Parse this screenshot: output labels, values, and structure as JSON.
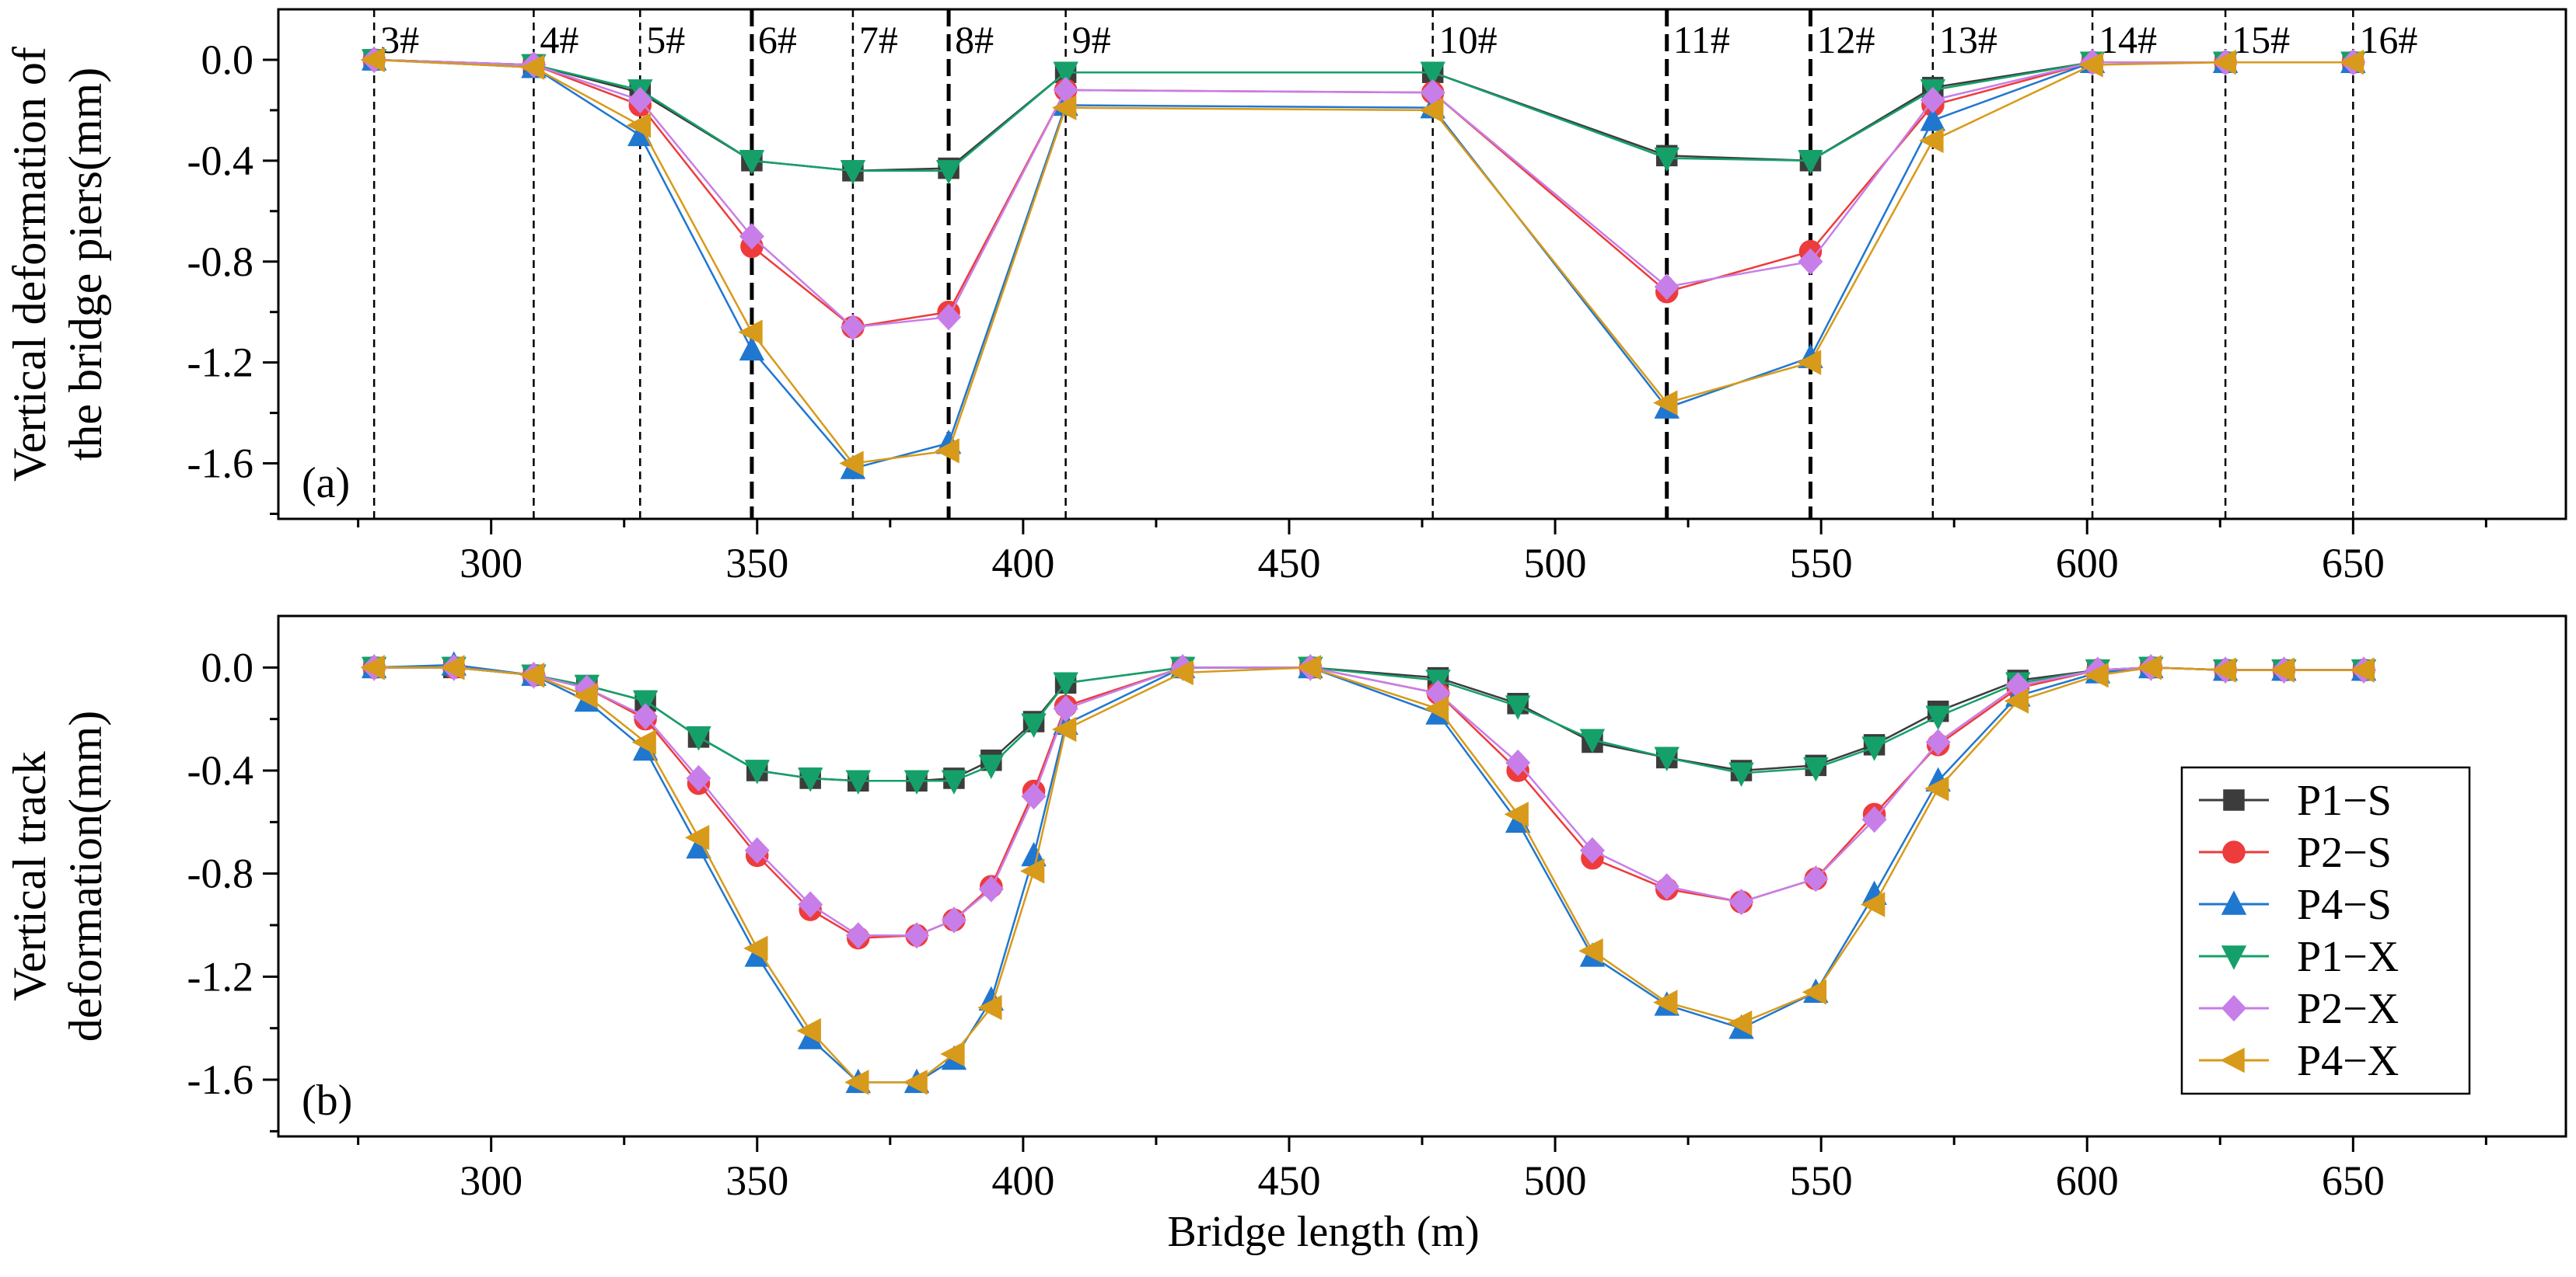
{
  "colors": {
    "P1-S": "#3c3c3c",
    "P2-S": "#ee3b3b",
    "P4-S": "#1f77d0",
    "P1-X": "#15a06a",
    "P2-X": "#c77ee8",
    "P4-X": "#d89a1a"
  },
  "legend": [
    "P1−S",
    "P2−S",
    "P4−S",
    "P1−X",
    "P2−X",
    "P4−X"
  ],
  "chart_data": [
    {
      "type": "line",
      "panel_label": "(a)",
      "ylabel_lines": [
        "Vertical deformation of",
        "the bridge piers(mm)"
      ],
      "xlabel": "",
      "xlim": [
        260,
        690
      ],
      "ylim": [
        -1.82,
        0.2
      ],
      "xticks": [
        300,
        350,
        400,
        450,
        500,
        550,
        600,
        650
      ],
      "yticks": [
        0.0,
        -0.4,
        -0.8,
        -1.2,
        -1.6
      ],
      "ytick_labels": [
        "0.0",
        "-0.4",
        "-0.8",
        "-1.2",
        "-1.6"
      ],
      "piers": [
        {
          "x": 278,
          "label": "3#",
          "bold": false
        },
        {
          "x": 308,
          "label": "4#",
          "bold": false
        },
        {
          "x": 328,
          "label": "5#",
          "bold": false
        },
        {
          "x": 349,
          "label": "6#",
          "bold": true
        },
        {
          "x": 368,
          "label": "7#",
          "bold": false
        },
        {
          "x": 386,
          "label": "8#",
          "bold": true
        },
        {
          "x": 408,
          "label": "9#",
          "bold": false
        },
        {
          "x": 477,
          "label": "10#",
          "bold": false
        },
        {
          "x": 521,
          "label": "11#",
          "bold": true
        },
        {
          "x": 548,
          "label": "12#",
          "bold": true
        },
        {
          "x": 571,
          "label": "13#",
          "bold": false
        },
        {
          "x": 601,
          "label": "14#",
          "bold": false
        },
        {
          "x": 626,
          "label": "15#",
          "bold": false
        },
        {
          "x": 650,
          "label": "16#",
          "bold": false
        }
      ],
      "x": [
        278,
        308,
        328,
        349,
        368,
        386,
        408,
        477,
        521,
        548,
        571,
        601,
        626,
        650
      ],
      "series": [
        {
          "name": "P1-S",
          "marker": "square",
          "values": [
            0.0,
            -0.02,
            -0.13,
            -0.4,
            -0.44,
            -0.43,
            -0.05,
            -0.05,
            -0.38,
            -0.4,
            -0.11,
            -0.01,
            -0.01,
            -0.01
          ]
        },
        {
          "name": "P2-S",
          "marker": "circle",
          "values": [
            0.0,
            -0.02,
            -0.18,
            -0.74,
            -1.06,
            -1.0,
            -0.12,
            -0.13,
            -0.92,
            -0.76,
            -0.18,
            -0.01,
            -0.01,
            -0.01
          ]
        },
        {
          "name": "P4-S",
          "marker": "triangle-up",
          "values": [
            0.0,
            -0.03,
            -0.3,
            -1.15,
            -1.62,
            -1.52,
            -0.18,
            -0.19,
            -1.38,
            -1.18,
            -0.24,
            -0.01,
            -0.01,
            -0.01
          ]
        },
        {
          "name": "P1-X",
          "marker": "triangle-down",
          "values": [
            0.0,
            -0.02,
            -0.12,
            -0.4,
            -0.44,
            -0.44,
            -0.05,
            -0.05,
            -0.39,
            -0.4,
            -0.12,
            -0.01,
            -0.01,
            -0.01
          ]
        },
        {
          "name": "P2-X",
          "marker": "diamond",
          "values": [
            0.0,
            -0.02,
            -0.16,
            -0.7,
            -1.06,
            -1.02,
            -0.12,
            -0.13,
            -0.9,
            -0.8,
            -0.16,
            -0.01,
            -0.01,
            -0.01
          ]
        },
        {
          "name": "P4-X",
          "marker": "triangle-left",
          "values": [
            0.0,
            -0.03,
            -0.26,
            -1.08,
            -1.6,
            -1.55,
            -0.19,
            -0.2,
            -1.36,
            -1.2,
            -0.32,
            -0.02,
            -0.01,
            -0.01
          ]
        }
      ]
    },
    {
      "type": "line",
      "panel_label": "(b)",
      "ylabel_lines": [
        "Vertical track",
        "deformation(mm)"
      ],
      "xlabel": "Bridge length (m)",
      "xlim": [
        260,
        690
      ],
      "ylim": [
        -1.82,
        0.2
      ],
      "xticks": [
        300,
        350,
        400,
        450,
        500,
        550,
        600,
        650
      ],
      "yticks": [
        0.0,
        -0.4,
        -0.8,
        -1.2,
        -1.6
      ],
      "ytick_labels": [
        "0.0",
        "-0.4",
        "-0.8",
        "-1.2",
        "-1.6"
      ],
      "legend_position": "right",
      "series": [
        {
          "name": "P1-S",
          "marker": "square",
          "x": [
            278,
            293,
            308,
            318,
            329,
            339,
            350,
            360,
            369,
            380,
            387,
            394,
            402,
            408,
            430,
            454,
            478,
            493,
            507,
            521,
            535,
            549,
            560,
            572,
            587,
            602,
            612,
            626,
            637,
            652
          ],
          "values": [
            0.0,
            0.0,
            -0.03,
            -0.07,
            -0.13,
            -0.27,
            -0.4,
            -0.43,
            -0.44,
            -0.44,
            -0.43,
            -0.36,
            -0.21,
            -0.06,
            0.0,
            0.0,
            -0.04,
            -0.14,
            -0.29,
            -0.35,
            -0.4,
            -0.38,
            -0.3,
            -0.17,
            -0.05,
            -0.01,
            0.0,
            -0.01,
            -0.01,
            -0.01
          ]
        },
        {
          "name": "P2-S",
          "marker": "circle",
          "x": [
            278,
            293,
            308,
            318,
            329,
            339,
            350,
            360,
            369,
            380,
            387,
            394,
            402,
            408,
            430,
            454,
            478,
            493,
            507,
            521,
            535,
            549,
            560,
            572,
            587,
            602,
            612,
            626,
            637,
            652
          ],
          "values": [
            0.0,
            0.0,
            -0.03,
            -0.08,
            -0.2,
            -0.45,
            -0.73,
            -0.94,
            -1.05,
            -1.04,
            -0.98,
            -0.85,
            -0.48,
            -0.15,
            0.0,
            0.0,
            -0.1,
            -0.4,
            -0.74,
            -0.86,
            -0.91,
            -0.82,
            -0.57,
            -0.3,
            -0.08,
            -0.01,
            0.0,
            -0.01,
            -0.01,
            -0.01
          ]
        },
        {
          "name": "P4-S",
          "marker": "triangle-up",
          "x": [
            278,
            293,
            308,
            318,
            329,
            339,
            350,
            360,
            369,
            380,
            387,
            394,
            402,
            408,
            430,
            454,
            478,
            493,
            507,
            521,
            535,
            549,
            560,
            572,
            587,
            602,
            612,
            626,
            637,
            652
          ],
          "values": [
            0.0,
            0.01,
            -0.03,
            -0.13,
            -0.32,
            -0.7,
            -1.12,
            -1.44,
            -1.61,
            -1.61,
            -1.52,
            -1.29,
            -0.73,
            -0.22,
            0.0,
            0.0,
            -0.18,
            -0.6,
            -1.12,
            -1.31,
            -1.4,
            -1.26,
            -0.88,
            -0.44,
            -0.11,
            -0.02,
            0.0,
            -0.01,
            -0.01,
            -0.01
          ]
        },
        {
          "name": "P1-X",
          "marker": "triangle-down",
          "x": [
            278,
            293,
            308,
            318,
            329,
            339,
            350,
            360,
            369,
            380,
            387,
            394,
            402,
            408,
            430,
            454,
            478,
            493,
            507,
            521,
            535,
            549,
            560,
            572,
            587,
            602,
            612,
            626,
            637,
            652
          ],
          "values": [
            0.0,
            0.0,
            -0.03,
            -0.07,
            -0.13,
            -0.27,
            -0.4,
            -0.43,
            -0.44,
            -0.44,
            -0.44,
            -0.38,
            -0.22,
            -0.06,
            0.0,
            0.0,
            -0.05,
            -0.15,
            -0.28,
            -0.35,
            -0.41,
            -0.39,
            -0.31,
            -0.19,
            -0.06,
            -0.01,
            0.0,
            -0.01,
            -0.01,
            -0.01
          ]
        },
        {
          "name": "P2-X",
          "marker": "diamond",
          "x": [
            278,
            293,
            308,
            318,
            329,
            339,
            350,
            360,
            369,
            380,
            387,
            394,
            402,
            408,
            430,
            454,
            478,
            493,
            507,
            521,
            535,
            549,
            560,
            572,
            587,
            602,
            612,
            626,
            637,
            652
          ],
          "values": [
            0.0,
            0.0,
            -0.03,
            -0.08,
            -0.19,
            -0.43,
            -0.71,
            -0.92,
            -1.04,
            -1.04,
            -0.98,
            -0.86,
            -0.5,
            -0.16,
            0.0,
            0.0,
            -0.1,
            -0.37,
            -0.71,
            -0.85,
            -0.91,
            -0.82,
            -0.59,
            -0.29,
            -0.07,
            -0.01,
            0.0,
            -0.01,
            -0.01,
            -0.01
          ]
        },
        {
          "name": "P4-X",
          "marker": "triangle-left",
          "x": [
            278,
            293,
            308,
            318,
            329,
            339,
            350,
            360,
            369,
            380,
            387,
            394,
            402,
            408,
            430,
            454,
            478,
            493,
            507,
            521,
            535,
            549,
            560,
            572,
            587,
            602,
            612,
            626,
            637,
            652
          ],
          "values": [
            0.0,
            0.0,
            -0.03,
            -0.11,
            -0.29,
            -0.66,
            -1.09,
            -1.41,
            -1.61,
            -1.61,
            -1.5,
            -1.32,
            -0.79,
            -0.24,
            -0.02,
            0.0,
            -0.16,
            -0.57,
            -1.1,
            -1.3,
            -1.38,
            -1.26,
            -0.92,
            -0.47,
            -0.13,
            -0.03,
            0.0,
            -0.01,
            -0.01,
            -0.01
          ]
        }
      ]
    }
  ]
}
